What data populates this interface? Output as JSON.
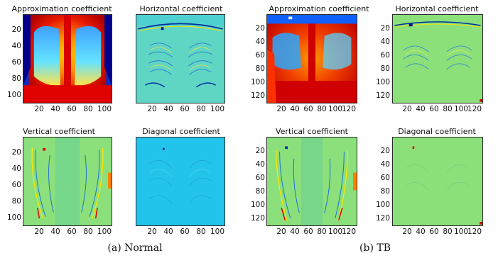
{
  "figures": [
    {
      "caption": "(a) Normal",
      "panels": [
        {
          "title": "Approximation coefficient",
          "kind": "approx",
          "yticks": [
            "20",
            "40",
            "60",
            "80",
            "100"
          ],
          "xticks": [
            "20",
            "40",
            "60",
            "80",
            "100"
          ]
        },
        {
          "title": "Horizontal coefficient",
          "kind": "horizontal",
          "yticks": [],
          "xticks": [
            "20",
            "40",
            "60",
            "80",
            "100"
          ]
        },
        {
          "title": "Vertical coefficient",
          "kind": "vertical",
          "yticks": [
            "20",
            "40",
            "60",
            "80",
            "100"
          ],
          "xticks": [
            "20",
            "40",
            "60",
            "80",
            "100"
          ]
        },
        {
          "title": "Diagonal coefficient",
          "kind": "diagonal",
          "yticks": [],
          "xticks": [
            "20",
            "40",
            "60",
            "80",
            "100"
          ]
        }
      ]
    },
    {
      "caption": "(b) TB",
      "panels": [
        {
          "title": "Approximation coefficient",
          "kind": "approx",
          "yticks": [
            "20",
            "40",
            "60",
            "80",
            "100",
            "120"
          ],
          "xticks": [
            "20",
            "40",
            "60",
            "80",
            "100",
            "120"
          ]
        },
        {
          "title": "Horizontal coefficient",
          "kind": "horizontal",
          "yticks": [
            "20",
            "40",
            "60",
            "80",
            "100",
            "120"
          ],
          "xticks": [
            "20",
            "40",
            "60",
            "80",
            "100",
            "120"
          ]
        },
        {
          "title": "Vertical coefficient",
          "kind": "vertical",
          "yticks": [
            "20",
            "40",
            "60",
            "80",
            "100",
            "120"
          ],
          "xticks": [
            "20",
            "40",
            "60",
            "80",
            "100",
            "120"
          ]
        },
        {
          "title": "Diagonal coefficient",
          "kind": "diagonal",
          "yticks": [
            "20",
            "40",
            "60",
            "80",
            "100",
            "120"
          ],
          "xticks": [
            "20",
            "40",
            "60",
            "80",
            "100",
            "120"
          ]
        }
      ]
    }
  ],
  "colors": {
    "jet_dark_blue": "#00008f",
    "jet_blue": "#0040ff",
    "jet_cyan": "#00d5ff",
    "jet_green": "#7fff7f",
    "jet_yellow": "#ffef00",
    "jet_orange": "#ff8000",
    "jet_red": "#e00000",
    "detail_cyan": "#2ec9e6",
    "detail_green": "#8ce07a"
  }
}
